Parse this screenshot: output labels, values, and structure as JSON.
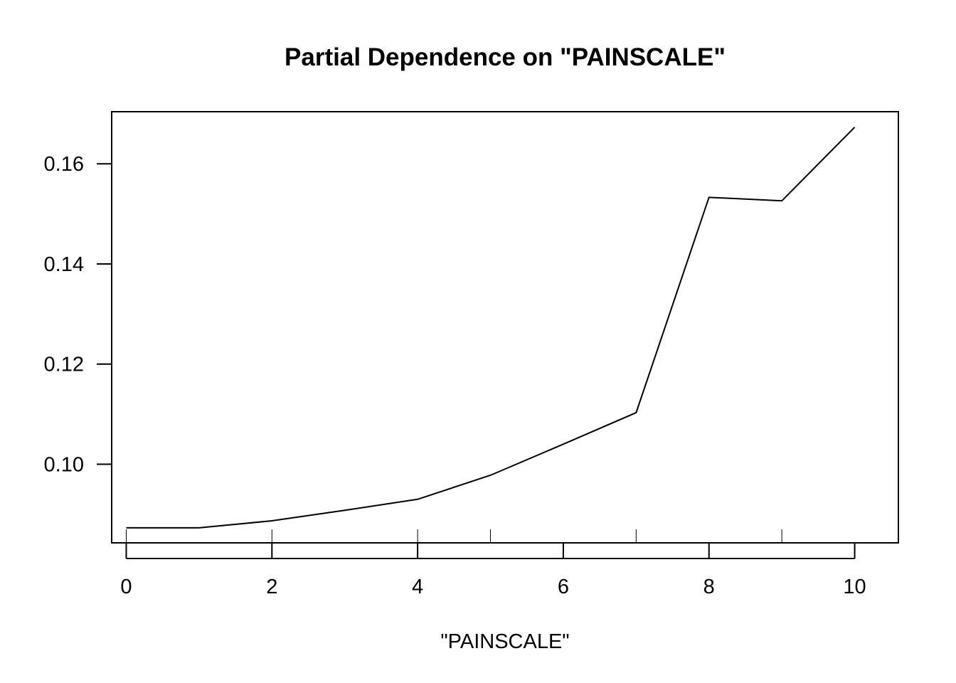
{
  "chart_data": {
    "type": "line",
    "title": "Partial Dependence on \"PAINSCALE\"",
    "xlabel": "\"PAINSCALE\"",
    "ylabel": "",
    "x": [
      0,
      1,
      2,
      3,
      4,
      5,
      6,
      7,
      8,
      9,
      10
    ],
    "series": [
      {
        "values": [
          0.0873,
          0.0873,
          0.0887,
          0.0908,
          0.093,
          0.0978,
          0.104,
          0.1103,
          0.1533,
          0.1526,
          0.1673
        ]
      }
    ],
    "xlim": [
      -0.2,
      10.6
    ],
    "ylim": [
      0.0843,
      0.1704
    ],
    "xticks": [
      0,
      2,
      4,
      6,
      8,
      10
    ],
    "xtick_labels": [
      "0",
      "2",
      "4",
      "6",
      "8",
      "10"
    ],
    "yticks": [
      0.1,
      0.12,
      0.14,
      0.16
    ],
    "ytick_labels": [
      "0.10",
      "0.12",
      "0.14",
      "0.16"
    ],
    "rug_ticks": [
      0,
      2,
      4,
      5,
      7,
      9
    ],
    "grid": false,
    "line_color": "#000000"
  }
}
